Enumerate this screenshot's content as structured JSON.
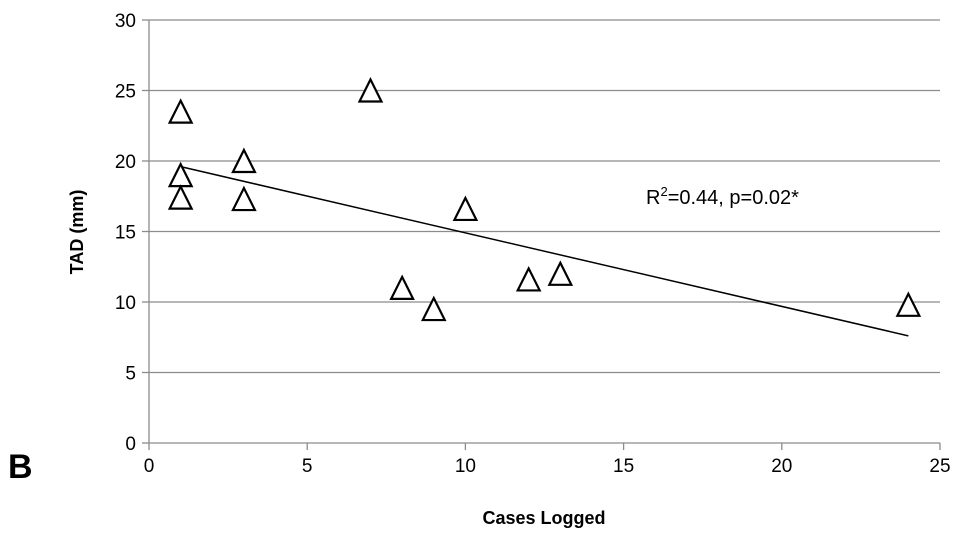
{
  "chart_data": {
    "type": "scatter",
    "panel_label": "B",
    "xlabel": "Cases Logged",
    "ylabel": "TAD (mm)",
    "xlim": [
      0,
      25
    ],
    "ylim": [
      0,
      30
    ],
    "x_ticks": [
      0,
      5,
      10,
      15,
      20,
      25
    ],
    "y_ticks": [
      0,
      5,
      10,
      15,
      20,
      25,
      30
    ],
    "grid": "horizontal",
    "marker": "open-triangle",
    "series": [
      {
        "points": [
          {
            "x": 1,
            "y": 23.5
          },
          {
            "x": 1,
            "y": 19.0
          },
          {
            "x": 1,
            "y": 17.4
          },
          {
            "x": 3,
            "y": 20.0
          },
          {
            "x": 3,
            "y": 17.3
          },
          {
            "x": 7,
            "y": 25.0
          },
          {
            "x": 8,
            "y": 11.0
          },
          {
            "x": 9,
            "y": 9.5
          },
          {
            "x": 10,
            "y": 16.6
          },
          {
            "x": 12,
            "y": 11.6
          },
          {
            "x": 13,
            "y": 12.0
          },
          {
            "x": 24,
            "y": 9.8
          }
        ]
      }
    ],
    "trendline": {
      "type": "linear",
      "start": {
        "x": 1,
        "y": 19.6
      },
      "end": {
        "x": 24,
        "y": 7.6
      }
    },
    "annotation": {
      "text_prefix": "R",
      "text_sup": "2",
      "text_suffix": "=0.44, p=0.02*"
    }
  }
}
